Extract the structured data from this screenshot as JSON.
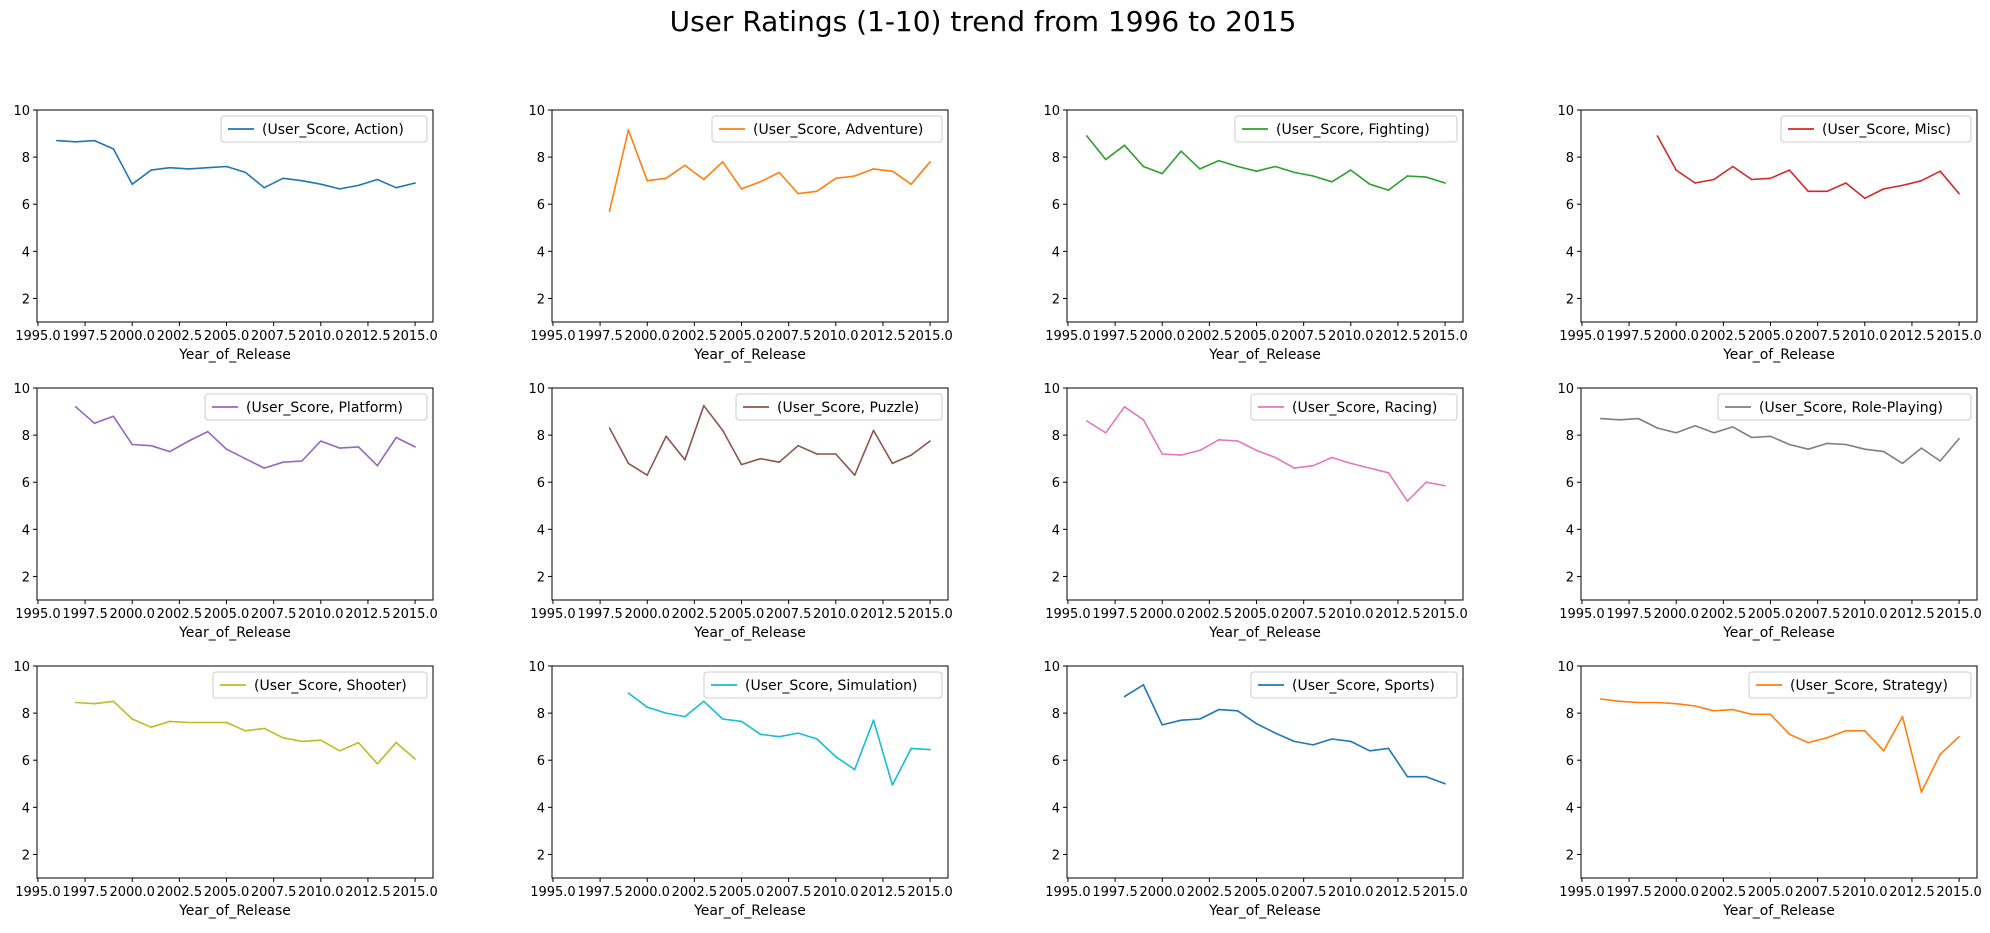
{
  "figure": {
    "title": "User Ratings (1-10) trend from 1996 to 2015"
  },
  "chart_data": [
    {
      "type": "line",
      "legend": "(User_Score, Action)",
      "color": "#1f77b4",
      "xlabel": "Year_of_Release",
      "x_ticks": [
        "1995.0",
        "1997.5",
        "2000.0",
        "2002.5",
        "2005.0",
        "2007.5",
        "2010.0",
        "2012.5",
        "2015.0"
      ],
      "y_ticks": [
        "2",
        "4",
        "6",
        "8",
        "10"
      ],
      "xlim": [
        1994.95,
        2015.95
      ],
      "ylim": [
        1,
        10
      ],
      "legend_loc": "upper right",
      "x": [
        1996,
        1997,
        1998,
        1999,
        2000,
        2001,
        2002,
        2003,
        2004,
        2005,
        2006,
        2007,
        2008,
        2009,
        2010,
        2011,
        2012,
        2013,
        2014,
        2015
      ],
      "y": [
        8.7,
        8.65,
        8.7,
        8.35,
        6.85,
        7.45,
        7.55,
        7.5,
        7.55,
        7.6,
        7.35,
        6.7,
        7.1,
        7.0,
        6.85,
        6.65,
        6.8,
        7.05,
        6.7,
        6.9
      ]
    },
    {
      "type": "line",
      "legend": "(User_Score, Adventure)",
      "color": "#ff7f0e",
      "xlabel": "Year_of_Release",
      "x_ticks": [
        "1995.0",
        "1997.5",
        "2000.0",
        "2002.5",
        "2005.0",
        "2007.5",
        "2010.0",
        "2012.5",
        "2015.0"
      ],
      "y_ticks": [
        "2",
        "4",
        "6",
        "8",
        "10"
      ],
      "xlim": [
        1994.95,
        2015.95
      ],
      "ylim": [
        1,
        10
      ],
      "legend_loc": "upper right",
      "x": [
        1998,
        1999,
        2000,
        2001,
        2002,
        2003,
        2004,
        2005,
        2006,
        2007,
        2008,
        2009,
        2010,
        2011,
        2012,
        2013,
        2014,
        2015
      ],
      "y": [
        5.7,
        9.15,
        7.0,
        7.1,
        7.65,
        7.05,
        7.8,
        6.65,
        6.95,
        7.35,
        6.45,
        6.55,
        7.1,
        7.2,
        7.5,
        7.4,
        6.85,
        7.8
      ]
    },
    {
      "type": "line",
      "legend": "(User_Score, Fighting)",
      "color": "#2ca02c",
      "xlabel": "Year_of_Release",
      "x_ticks": [
        "1995.0",
        "1997.5",
        "2000.0",
        "2002.5",
        "2005.0",
        "2007.5",
        "2010.0",
        "2012.5",
        "2015.0"
      ],
      "y_ticks": [
        "2",
        "4",
        "6",
        "8",
        "10"
      ],
      "xlim": [
        1994.95,
        2015.95
      ],
      "ylim": [
        1,
        10
      ],
      "legend_loc": "upper right",
      "x": [
        1996,
        1997,
        1998,
        1999,
        2000,
        2001,
        2002,
        2003,
        2004,
        2005,
        2006,
        2007,
        2008,
        2009,
        2010,
        2011,
        2012,
        2013,
        2014,
        2015
      ],
      "y": [
        8.9,
        7.9,
        8.5,
        7.6,
        7.3,
        8.25,
        7.5,
        7.85,
        7.6,
        7.4,
        7.6,
        7.35,
        7.2,
        6.95,
        7.45,
        6.85,
        6.6,
        7.2,
        7.15,
        6.9
      ]
    },
    {
      "type": "line",
      "legend": "(User_Score, Misc)",
      "color": "#d62728",
      "xlabel": "Year_of_Release",
      "x_ticks": [
        "1995.0",
        "1997.5",
        "2000.0",
        "2002.5",
        "2005.0",
        "2007.5",
        "2010.0",
        "2012.5",
        "2015.0"
      ],
      "y_ticks": [
        "2",
        "4",
        "6",
        "8",
        "10"
      ],
      "xlim": [
        1994.95,
        2015.95
      ],
      "ylim": [
        1,
        10
      ],
      "legend_loc": "upper right",
      "x": [
        1999,
        2000,
        2001,
        2002,
        2003,
        2004,
        2005,
        2006,
        2007,
        2008,
        2009,
        2010,
        2011,
        2012,
        2013,
        2014,
        2015
      ],
      "y": [
        8.9,
        7.45,
        6.9,
        7.05,
        7.6,
        7.05,
        7.1,
        7.45,
        6.55,
        6.55,
        6.9,
        6.25,
        6.65,
        6.8,
        7.0,
        7.4,
        6.45
      ]
    },
    {
      "type": "line",
      "legend": "(User_Score, Platform)",
      "color": "#9467bd",
      "xlabel": "Year_of_Release",
      "x_ticks": [
        "1995.0",
        "1997.5",
        "2000.0",
        "2002.5",
        "2005.0",
        "2007.5",
        "2010.0",
        "2012.5",
        "2015.0"
      ],
      "y_ticks": [
        "2",
        "4",
        "6",
        "8",
        "10"
      ],
      "xlim": [
        1994.95,
        2015.95
      ],
      "ylim": [
        1,
        10
      ],
      "legend_loc": "upper right",
      "x": [
        1997,
        1998,
        1999,
        2000,
        2001,
        2002,
        2003,
        2004,
        2005,
        2006,
        2007,
        2008,
        2009,
        2010,
        2011,
        2012,
        2013,
        2014,
        2015
      ],
      "y": [
        9.2,
        8.5,
        8.8,
        7.6,
        7.55,
        7.3,
        7.75,
        8.15,
        7.4,
        7.0,
        6.6,
        6.85,
        6.9,
        7.75,
        7.45,
        7.5,
        6.7,
        7.9,
        7.5
      ]
    },
    {
      "type": "line",
      "legend": "(User_Score, Puzzle)",
      "color": "#8c564b",
      "xlabel": "Year_of_Release",
      "x_ticks": [
        "1995.0",
        "1997.5",
        "2000.0",
        "2002.5",
        "2005.0",
        "2007.5",
        "2010.0",
        "2012.5",
        "2015.0"
      ],
      "y_ticks": [
        "2",
        "4",
        "6",
        "8",
        "10"
      ],
      "xlim": [
        1994.95,
        2015.95
      ],
      "ylim": [
        1,
        10
      ],
      "legend_loc": "upper right",
      "x": [
        1998,
        1999,
        2000,
        2001,
        2002,
        2003,
        2004,
        2005,
        2006,
        2007,
        2008,
        2009,
        2010,
        2011,
        2012,
        2013,
        2014,
        2015
      ],
      "y": [
        8.3,
        6.8,
        6.3,
        7.95,
        6.95,
        9.25,
        8.2,
        6.75,
        7.0,
        6.85,
        7.55,
        7.2,
        7.2,
        6.3,
        8.2,
        6.8,
        7.15,
        7.75
      ]
    },
    {
      "type": "line",
      "legend": "(User_Score, Racing)",
      "color": "#e377c2",
      "xlabel": "Year_of_Release",
      "x_ticks": [
        "1995.0",
        "1997.5",
        "2000.0",
        "2002.5",
        "2005.0",
        "2007.5",
        "2010.0",
        "2012.5",
        "2015.0"
      ],
      "y_ticks": [
        "2",
        "4",
        "6",
        "8",
        "10"
      ],
      "xlim": [
        1994.95,
        2015.95
      ],
      "ylim": [
        1,
        10
      ],
      "legend_loc": "upper right",
      "x": [
        1996,
        1997,
        1998,
        1999,
        2000,
        2001,
        2002,
        2003,
        2004,
        2005,
        2006,
        2007,
        2008,
        2009,
        2010,
        2011,
        2012,
        2013,
        2014,
        2015
      ],
      "y": [
        8.6,
        8.1,
        9.2,
        8.65,
        7.2,
        7.15,
        7.35,
        7.8,
        7.75,
        7.35,
        7.05,
        6.6,
        6.7,
        7.05,
        6.8,
        6.6,
        6.4,
        5.2,
        6.0,
        5.85
      ]
    },
    {
      "type": "line",
      "legend": "(User_Score, Role-Playing)",
      "color": "#7f7f7f",
      "xlabel": "Year_of_Release",
      "x_ticks": [
        "1995.0",
        "1997.5",
        "2000.0",
        "2002.5",
        "2005.0",
        "2007.5",
        "2010.0",
        "2012.5",
        "2015.0"
      ],
      "y_ticks": [
        "2",
        "4",
        "6",
        "8",
        "10"
      ],
      "xlim": [
        1994.95,
        2015.95
      ],
      "ylim": [
        1,
        10
      ],
      "legend_loc": "upper right",
      "x": [
        1996,
        1997,
        1998,
        1999,
        2000,
        2001,
        2002,
        2003,
        2004,
        2005,
        2006,
        2007,
        2008,
        2009,
        2010,
        2011,
        2012,
        2013,
        2014,
        2015
      ],
      "y": [
        8.7,
        8.65,
        8.7,
        8.3,
        8.1,
        8.4,
        8.1,
        8.35,
        7.9,
        7.95,
        7.6,
        7.4,
        7.65,
        7.6,
        7.4,
        7.3,
        6.8,
        7.45,
        6.9,
        7.85
      ]
    },
    {
      "type": "line",
      "legend": "(User_Score, Shooter)",
      "color": "#bcbd22",
      "xlabel": "Year_of_Release",
      "x_ticks": [
        "1995.0",
        "1997.5",
        "2000.0",
        "2002.5",
        "2005.0",
        "2007.5",
        "2010.0",
        "2012.5",
        "2015.0"
      ],
      "y_ticks": [
        "2",
        "4",
        "6",
        "8",
        "10"
      ],
      "xlim": [
        1994.95,
        2015.95
      ],
      "ylim": [
        1,
        10
      ],
      "legend_loc": "upper right",
      "x": [
        1997,
        1998,
        1999,
        2000,
        2001,
        2002,
        2003,
        2004,
        2005,
        2006,
        2007,
        2008,
        2009,
        2010,
        2011,
        2012,
        2013,
        2014,
        2015
      ],
      "y": [
        8.45,
        8.4,
        8.5,
        7.75,
        7.4,
        7.65,
        7.6,
        7.6,
        7.6,
        7.25,
        7.35,
        6.95,
        6.8,
        6.85,
        6.4,
        6.75,
        5.85,
        6.75,
        6.05
      ]
    },
    {
      "type": "line",
      "legend": "(User_Score, Simulation)",
      "color": "#17becf",
      "xlabel": "Year_of_Release",
      "x_ticks": [
        "1995.0",
        "1997.5",
        "2000.0",
        "2002.5",
        "2005.0",
        "2007.5",
        "2010.0",
        "2012.5",
        "2015.0"
      ],
      "y_ticks": [
        "2",
        "4",
        "6",
        "8",
        "10"
      ],
      "xlim": [
        1994.95,
        2015.95
      ],
      "ylim": [
        1,
        10
      ],
      "legend_loc": "upper right",
      "x": [
        1999,
        2000,
        2001,
        2002,
        2003,
        2004,
        2005,
        2006,
        2007,
        2008,
        2009,
        2010,
        2011,
        2012,
        2013,
        2014,
        2015
      ],
      "y": [
        8.85,
        8.25,
        8.0,
        7.85,
        8.5,
        7.75,
        7.65,
        7.1,
        7.0,
        7.15,
        6.9,
        6.15,
        5.6,
        7.7,
        4.95,
        6.5,
        6.45
      ]
    },
    {
      "type": "line",
      "legend": "(User_Score, Sports)",
      "color": "#1f77b4",
      "xlabel": "Year_of_Release",
      "x_ticks": [
        "1995.0",
        "1997.5",
        "2000.0",
        "2002.5",
        "2005.0",
        "2007.5",
        "2010.0",
        "2012.5",
        "2015.0"
      ],
      "y_ticks": [
        "2",
        "4",
        "6",
        "8",
        "10"
      ],
      "xlim": [
        1994.95,
        2015.95
      ],
      "ylim": [
        1,
        10
      ],
      "legend_loc": "upper right",
      "x": [
        1998,
        1999,
        2000,
        2001,
        2002,
        2003,
        2004,
        2005,
        2006,
        2007,
        2008,
        2009,
        2010,
        2011,
        2012,
        2013,
        2014,
        2015
      ],
      "y": [
        8.7,
        9.2,
        7.5,
        7.7,
        7.75,
        8.15,
        8.1,
        7.55,
        7.15,
        6.8,
        6.65,
        6.9,
        6.8,
        6.4,
        6.5,
        5.3,
        5.3,
        5.0
      ]
    },
    {
      "type": "line",
      "legend": "(User_Score, Strategy)",
      "color": "#ff7f0e",
      "xlabel": "Year_of_Release",
      "x_ticks": [
        "1995.0",
        "1997.5",
        "2000.0",
        "2002.5",
        "2005.0",
        "2007.5",
        "2010.0",
        "2012.5",
        "2015.0"
      ],
      "y_ticks": [
        "2",
        "4",
        "6",
        "8",
        "10"
      ],
      "xlim": [
        1994.95,
        2015.95
      ],
      "ylim": [
        1,
        10
      ],
      "legend_loc": "upper right",
      "x": [
        1996,
        1997,
        1998,
        1999,
        2000,
        2001,
        2002,
        2003,
        2004,
        2005,
        2006,
        2007,
        2008,
        2009,
        2010,
        2011,
        2012,
        2013,
        2014,
        2015
      ],
      "y": [
        8.6,
        8.5,
        8.45,
        8.45,
        8.4,
        8.3,
        8.1,
        8.15,
        7.95,
        7.95,
        7.1,
        6.75,
        6.95,
        7.25,
        7.25,
        6.4,
        7.85,
        4.65,
        6.25,
        7.0
      ]
    }
  ]
}
